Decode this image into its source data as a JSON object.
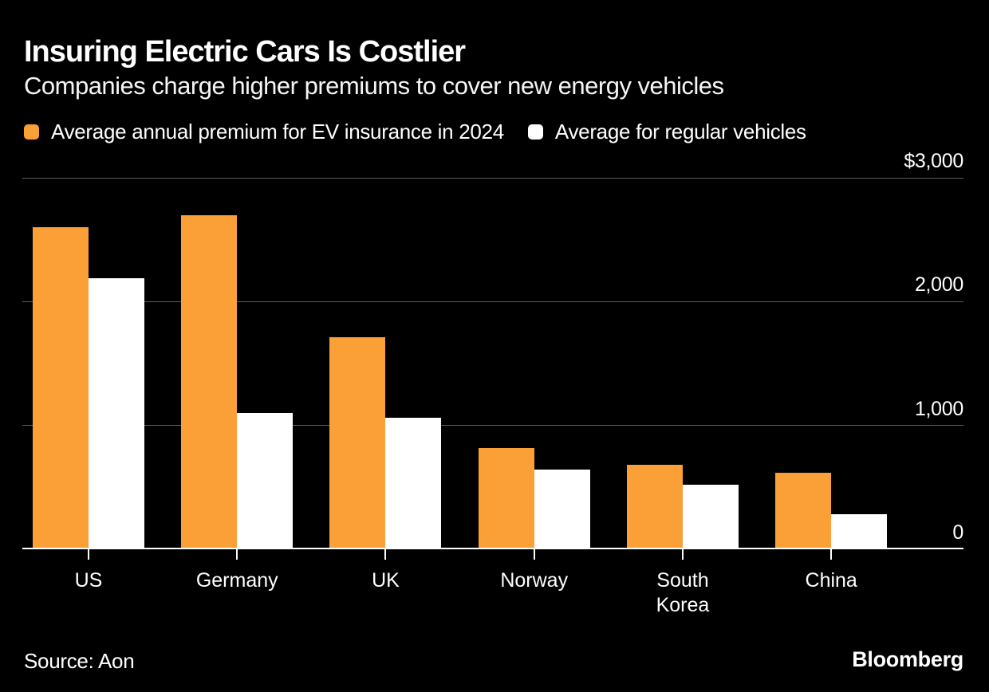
{
  "header": {
    "title": "Insuring Electric Cars Is Costlier",
    "subtitle": "Companies charge higher premiums to cover new energy vehicles"
  },
  "legend": {
    "items": [
      {
        "label": "Average annual premium for EV insurance in 2024",
        "color": "#FAA037",
        "swatch": "orange-rounded-square"
      },
      {
        "label": "Average for regular vehicles",
        "color": "#FFFFFF",
        "swatch": "white-rounded-square"
      }
    ]
  },
  "chart_data": {
    "type": "bar",
    "title": "Insuring Electric Cars Is Costlier",
    "subtitle": "Companies charge higher premiums to cover new energy vehicles",
    "categories": [
      "US",
      "Germany",
      "UK",
      "Norway",
      "South Korea",
      "China"
    ],
    "series": [
      {
        "name": "Average annual premium for EV insurance in 2024",
        "key": "ev",
        "color": "#FAA037",
        "values": [
          2600,
          2700,
          1710,
          820,
          685,
          620
        ]
      },
      {
        "name": "Average for regular vehicles",
        "key": "regular",
        "color": "#FFFFFF",
        "values": [
          2190,
          1100,
          1060,
          645,
          520,
          285
        ]
      }
    ],
    "xlabel": "",
    "ylabel": "",
    "ylim": [
      0,
      3000
    ],
    "y_axis": {
      "ticks": [
        0,
        1000,
        2000,
        3000
      ],
      "tick_labels": [
        "0",
        "1,000",
        "2,000",
        "$3,000"
      ]
    },
    "grid": "horizontal",
    "legend_position": "top"
  },
  "footer": {
    "source": "Source: Aon",
    "brand": "Bloomberg"
  },
  "colors": {
    "background": "#000000",
    "text": "#FFFFFF",
    "gridline": "#5C5C5C",
    "baseline": "#FFFFFF",
    "ev_bar": "#FAA037",
    "regular_bar": "#FFFFFF"
  }
}
